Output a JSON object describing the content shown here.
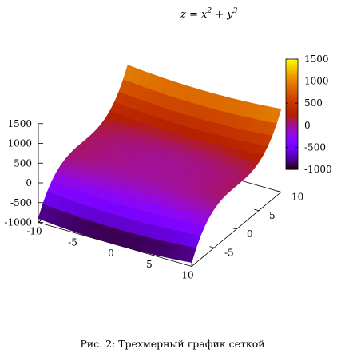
{
  "caption": "Рис. 2: Трехмерный график сеткой",
  "chart_data": {
    "type": "surface3d",
    "title": "z = x² + y³",
    "title_parts": {
      "lhs": "z = x",
      "exp1": "2",
      "mid": " + y",
      "exp2": "3"
    },
    "function": "z = x^2 + y^3",
    "xlim": [
      -10,
      10
    ],
    "ylim": [
      -10,
      10
    ],
    "zlim": [
      -1000,
      1500
    ],
    "x_ticks": [
      -10,
      -5,
      0,
      5,
      10
    ],
    "x_tick_labels": [
      "-10",
      "-5",
      "0",
      "5",
      "10"
    ],
    "y_ticks": [
      -5,
      0,
      5,
      10
    ],
    "y_tick_labels": [
      "-5",
      "0",
      "5",
      "10"
    ],
    "z_ticks": [
      -1000,
      -500,
      0,
      500,
      1000,
      1500
    ],
    "z_tick_labels": [
      "-1000",
      "-500",
      "0",
      "500",
      "1000",
      "1500"
    ],
    "colorbar": {
      "range": [
        -1000,
        1500
      ],
      "ticks": [
        -1000,
        -500,
        0,
        500,
        1000,
        1500
      ],
      "tick_labels": [
        "-1000",
        "-500",
        "0",
        "500",
        "1000",
        "1500"
      ],
      "palette": "gnuplot pm3d (black-purple-red-orange-yellow)"
    },
    "grid": false
  }
}
